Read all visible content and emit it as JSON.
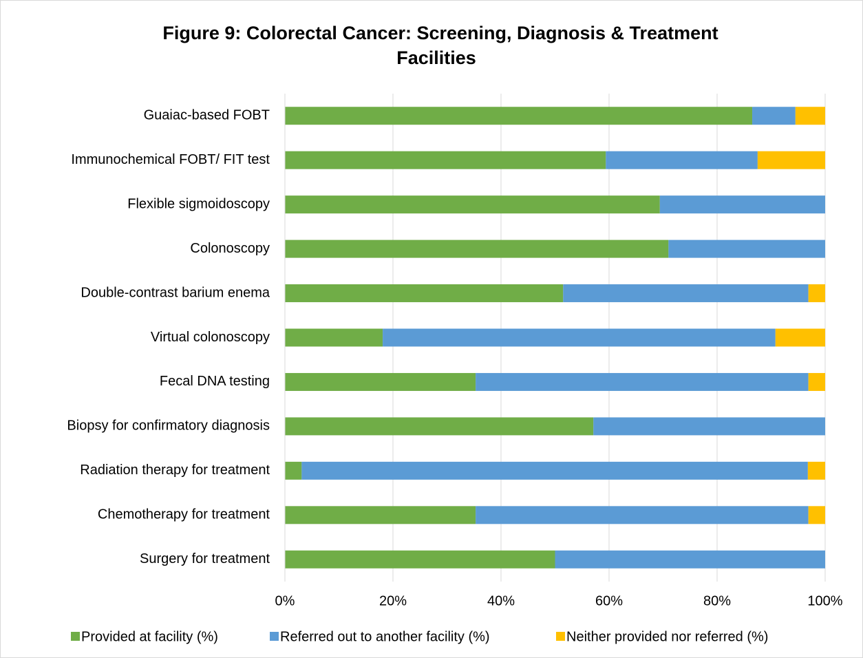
{
  "chart_data": {
    "type": "stacked_barh",
    "title": [
      "Figure 9: Colorectal Cancer: Screening, Diagnosis & Treatment",
      "Facilities"
    ],
    "categories": [
      "Guaiac-based FOBT",
      "Immunochemical FOBT/ FIT test",
      "Flexible sigmoidoscopy",
      "Colonoscopy",
      "Double-contrast barium enema",
      "Virtual colonoscopy",
      "Fecal DNA testing",
      "Biopsy for confirmatory diagnosis",
      "Radiation therapy for treatment",
      "Chemotherapy for treatment",
      "Surgery for treatment"
    ],
    "series": [
      {
        "name": "Provided at facility (%)",
        "color": "#70ad47",
        "values": [
          86.5,
          59.4,
          69.4,
          71.0,
          51.5,
          18.1,
          35.3,
          57.1,
          3.1,
          35.3,
          50.0
        ]
      },
      {
        "name": "Referred out to another facility (%)",
        "color": "#5b9bd5",
        "values": [
          8.0,
          28.1,
          30.6,
          29.0,
          45.4,
          72.7,
          61.6,
          42.9,
          93.7,
          61.6,
          50.0
        ]
      },
      {
        "name": "Neither provided nor referred (%)",
        "color": "#ffc000",
        "values": [
          5.5,
          12.5,
          0,
          0,
          3.1,
          9.2,
          3.1,
          0,
          3.2,
          3.1,
          0
        ]
      }
    ],
    "xlim": [
      0,
      100
    ],
    "xticks": [
      {
        "value": 0,
        "label": "0%"
      },
      {
        "value": 20,
        "label": "20%"
      },
      {
        "value": 40,
        "label": "40%"
      },
      {
        "value": 60,
        "label": "60%"
      },
      {
        "value": 80,
        "label": "80%"
      },
      {
        "value": 100,
        "label": "100%"
      }
    ],
    "grid": true,
    "legend": "bottom"
  }
}
